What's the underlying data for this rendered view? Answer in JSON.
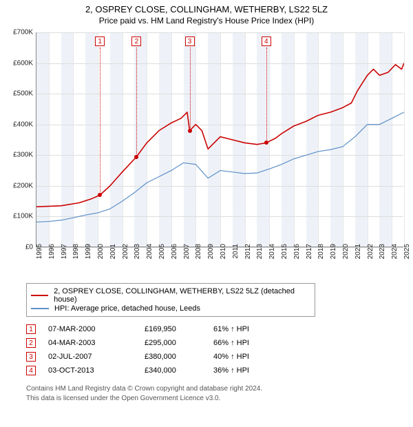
{
  "title": "2, OSPREY CLOSE, COLLINGHAM, WETHERBY, LS22 5LZ",
  "subtitle": "Price paid vs. HM Land Registry's House Price Index (HPI)",
  "chart": {
    "type": "line",
    "x_years": [
      1995,
      1996,
      1997,
      1998,
      1999,
      2000,
      2001,
      2002,
      2003,
      2004,
      2005,
      2006,
      2007,
      2008,
      2009,
      2010,
      2011,
      2012,
      2013,
      2014,
      2015,
      2016,
      2017,
      2018,
      2019,
      2020,
      2021,
      2022,
      2023,
      2024,
      2025
    ],
    "ylim": [
      0,
      700000
    ],
    "ytick_step": 100000,
    "yticklabels": [
      "£0",
      "£100K",
      "£200K",
      "£300K",
      "£400K",
      "£500K",
      "£600K",
      "£700K"
    ],
    "background_color": "#ffffff",
    "grid_color": "#dddddd",
    "band_color": "#eef2f8",
    "series": [
      {
        "name": "property",
        "color": "#cc0000",
        "width": 1.6,
        "data": [
          [
            1995,
            132000
          ],
          [
            1997,
            135000
          ],
          [
            1998.5,
            145000
          ],
          [
            1999.5,
            158000
          ],
          [
            2000.18,
            169950
          ],
          [
            2001,
            200000
          ],
          [
            2002,
            245000
          ],
          [
            2003.17,
            295000
          ],
          [
            2004,
            340000
          ],
          [
            2005,
            380000
          ],
          [
            2006,
            405000
          ],
          [
            2006.8,
            420000
          ],
          [
            2007.3,
            440000
          ],
          [
            2007.5,
            380000
          ],
          [
            2008,
            400000
          ],
          [
            2008.5,
            380000
          ],
          [
            2009,
            320000
          ],
          [
            2009.5,
            340000
          ],
          [
            2010,
            360000
          ],
          [
            2010.5,
            355000
          ],
          [
            2011,
            350000
          ],
          [
            2012,
            340000
          ],
          [
            2013,
            335000
          ],
          [
            2013.75,
            340000
          ],
          [
            2014.5,
            355000
          ],
          [
            2015,
            370000
          ],
          [
            2016,
            395000
          ],
          [
            2017,
            410000
          ],
          [
            2018,
            430000
          ],
          [
            2019,
            440000
          ],
          [
            2020,
            455000
          ],
          [
            2020.7,
            470000
          ],
          [
            2021.2,
            510000
          ],
          [
            2022,
            560000
          ],
          [
            2022.5,
            580000
          ],
          [
            2023,
            560000
          ],
          [
            2023.7,
            570000
          ],
          [
            2024.3,
            595000
          ],
          [
            2024.8,
            580000
          ],
          [
            2025,
            600000
          ]
        ]
      },
      {
        "name": "hpi",
        "color": "#5b8fc7",
        "width": 1.2,
        "data": [
          [
            1995,
            82000
          ],
          [
            1996,
            84000
          ],
          [
            1997,
            88000
          ],
          [
            1998,
            96000
          ],
          [
            1999,
            105000
          ],
          [
            2000,
            112000
          ],
          [
            2001,
            125000
          ],
          [
            2002,
            150000
          ],
          [
            2003,
            178000
          ],
          [
            2004,
            210000
          ],
          [
            2005,
            230000
          ],
          [
            2006,
            250000
          ],
          [
            2007,
            275000
          ],
          [
            2008,
            270000
          ],
          [
            2009,
            225000
          ],
          [
            2010,
            250000
          ],
          [
            2011,
            245000
          ],
          [
            2012,
            240000
          ],
          [
            2013,
            242000
          ],
          [
            2014,
            255000
          ],
          [
            2015,
            270000
          ],
          [
            2016,
            288000
          ],
          [
            2017,
            300000
          ],
          [
            2018,
            312000
          ],
          [
            2019,
            318000
          ],
          [
            2020,
            328000
          ],
          [
            2021,
            360000
          ],
          [
            2022,
            400000
          ],
          [
            2023,
            400000
          ],
          [
            2024,
            420000
          ],
          [
            2025,
            440000
          ]
        ]
      }
    ],
    "sale_markers": [
      {
        "n": "1",
        "x": 2000.18,
        "y": 169950
      },
      {
        "n": "2",
        "x": 2003.17,
        "y": 295000
      },
      {
        "n": "3",
        "x": 2007.5,
        "y": 380000
      },
      {
        "n": "4",
        "x": 2013.75,
        "y": 340000
      }
    ]
  },
  "legend": {
    "items": [
      {
        "color": "#cc0000",
        "label": "2, OSPREY CLOSE, COLLINGHAM, WETHERBY, LS22 5LZ (detached house)"
      },
      {
        "color": "#5b8fc7",
        "label": "HPI: Average price, detached house, Leeds"
      }
    ]
  },
  "transactions": [
    {
      "n": "1",
      "date": "07-MAR-2000",
      "price": "£169,950",
      "pct": "61% ↑ HPI"
    },
    {
      "n": "2",
      "date": "04-MAR-2003",
      "price": "£295,000",
      "pct": "66% ↑ HPI"
    },
    {
      "n": "3",
      "date": "02-JUL-2007",
      "price": "£380,000",
      "pct": "40% ↑ HPI"
    },
    {
      "n": "4",
      "date": "03-OCT-2013",
      "price": "£340,000",
      "pct": "36% ↑ HPI"
    }
  ],
  "footer_line1": "Contains HM Land Registry data © Crown copyright and database right 2024.",
  "footer_line2": "This data is licensed under the Open Government Licence v3.0."
}
